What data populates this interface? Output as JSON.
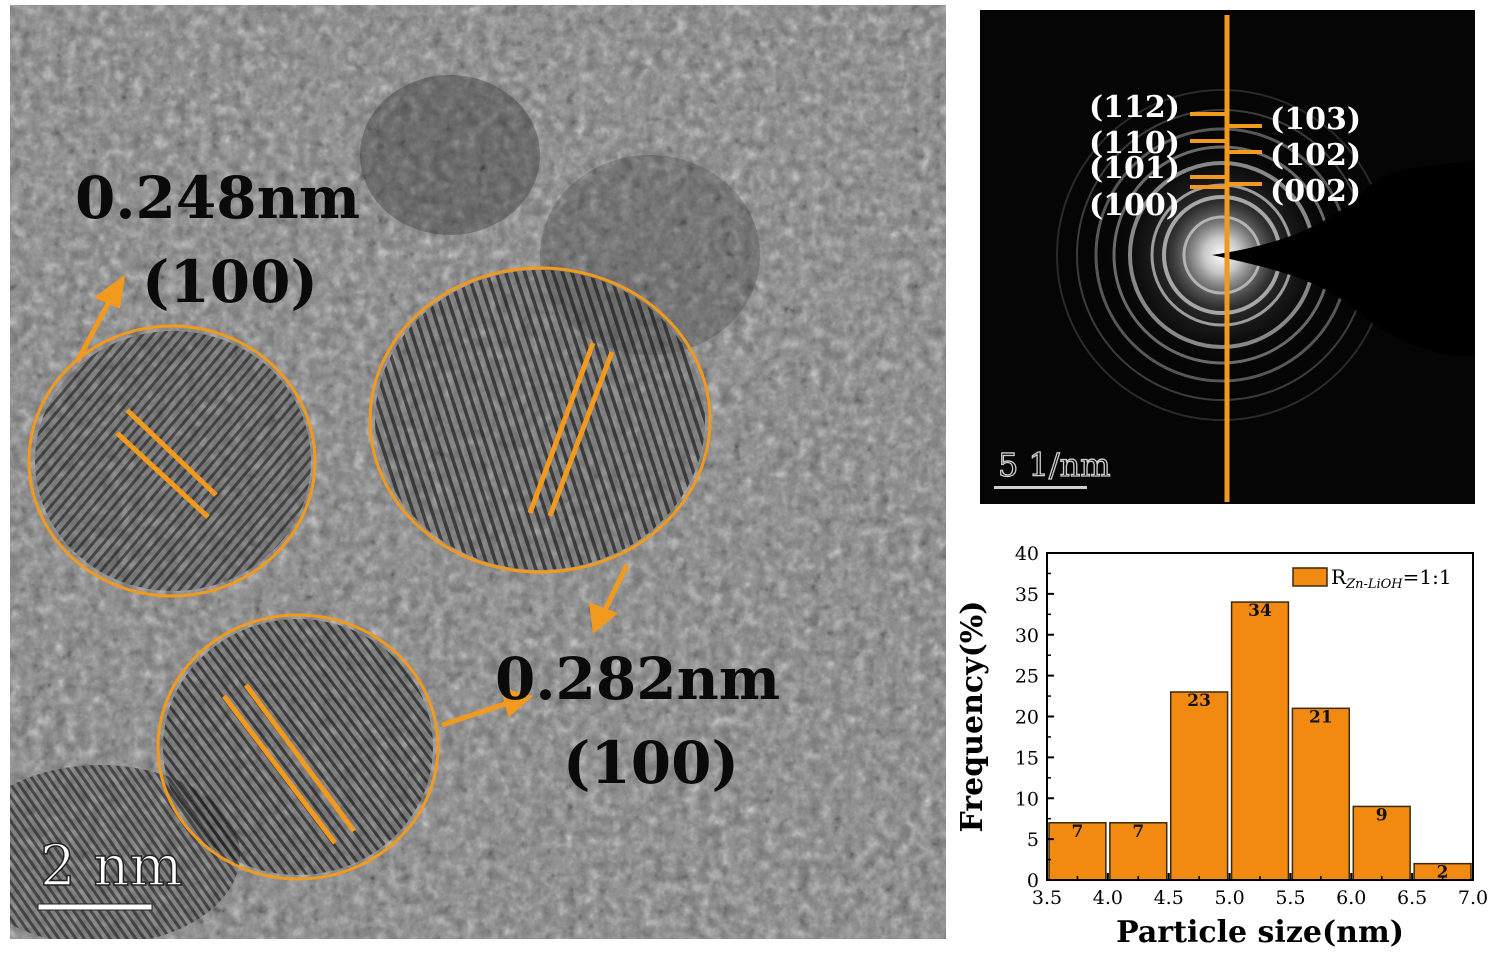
{
  "hrtem": {
    "annotations": [
      {
        "spacing": "0.248nm",
        "plane": "(100)"
      },
      {
        "spacing": "0.282nm",
        "plane": "(100)"
      }
    ],
    "scale_bar": "2 nm"
  },
  "saed": {
    "left_labels": [
      "(112)",
      "(110)",
      "(101)",
      "(100)"
    ],
    "right_labels": [
      "(103)",
      "(102)",
      "(002)"
    ],
    "scale_bar": "5 1/nm"
  },
  "chart_data": {
    "type": "bar",
    "xlabel": "Particle size(nm)",
    "ylabel": "Frequency(%)",
    "legend": {
      "prefix": "R",
      "subscript": "Zn-LiOH",
      "suffix": "=1:1",
      "position": "top-right"
    },
    "bins": [
      [
        3.5,
        4.0
      ],
      [
        4.0,
        4.5
      ],
      [
        4.5,
        5.0
      ],
      [
        5.0,
        5.5
      ],
      [
        5.5,
        6.0
      ],
      [
        6.0,
        6.5
      ],
      [
        6.5,
        7.0
      ]
    ],
    "values": [
      7,
      7,
      23,
      34,
      21,
      9,
      2
    ],
    "data_labels": [
      "7",
      "7",
      "23",
      "34",
      "21",
      "9",
      "2"
    ],
    "xlim": [
      3.5,
      7.0
    ],
    "ylim": [
      0,
      40
    ],
    "xticks": [
      "3.5",
      "4.0",
      "4.5",
      "5.0",
      "5.5",
      "6.0",
      "6.5",
      "7.0"
    ],
    "yticks": [
      "0",
      "5",
      "10",
      "15",
      "20",
      "25",
      "30",
      "35",
      "40"
    ],
    "grid": false
  },
  "colors": {
    "accent": "#f29a1e",
    "bar_fill": "#f28a12",
    "bar_edge": "#3a2a10",
    "saed_bg": "#050505"
  }
}
